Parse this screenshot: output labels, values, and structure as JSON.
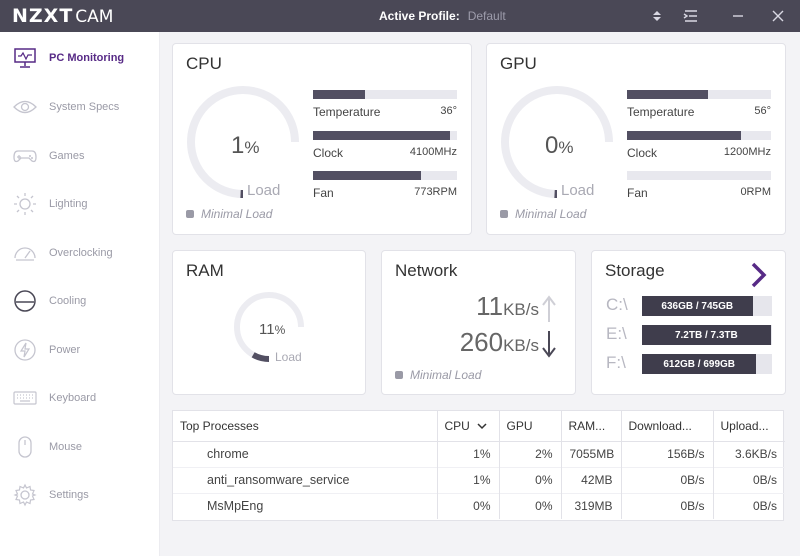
{
  "app": {
    "logo_bold": "NZXT",
    "logo_light": "CAM"
  },
  "header": {
    "profile_label": "Active Profile:",
    "profile_value": "Default"
  },
  "colors": {
    "titlebar": "#4a4856",
    "accent": "#572a86",
    "bar": "#524f62"
  },
  "sidebar": {
    "items": [
      {
        "label": "PC Monitoring",
        "icon": "monitor-icon",
        "active": true
      },
      {
        "label": "System Specs",
        "icon": "eye-icon"
      },
      {
        "label": "Games",
        "icon": "gamepad-icon"
      },
      {
        "label": "Lighting",
        "icon": "sun-icon"
      },
      {
        "label": "Overclocking",
        "icon": "speedometer-icon"
      },
      {
        "label": "Cooling",
        "icon": "fan-icon"
      },
      {
        "label": "Power",
        "icon": "lightning-icon"
      },
      {
        "label": "Keyboard",
        "icon": "keyboard-icon"
      },
      {
        "label": "Mouse",
        "icon": "mouse-icon"
      },
      {
        "label": "Settings",
        "icon": "gear-icon"
      }
    ]
  },
  "cpu": {
    "title": "CPU",
    "load_value": "1",
    "load_unit": "%",
    "load_label": "Load",
    "load_fraction": 0.01,
    "status": "Minimal Load",
    "metrics": [
      {
        "label": "Temperature",
        "value": "36°",
        "fill": 0.36
      },
      {
        "label": "Clock",
        "value": "4100MHz",
        "fill": 0.95
      },
      {
        "label": "Fan",
        "value": "773RPM",
        "fill": 0.75
      }
    ]
  },
  "gpu": {
    "title": "GPU",
    "load_value": "0",
    "load_unit": "%",
    "load_label": "Load",
    "load_fraction": 0.0,
    "status": "Minimal Load",
    "metrics": [
      {
        "label": "Temperature",
        "value": "56°",
        "fill": 0.56
      },
      {
        "label": "Clock",
        "value": "1200MHz",
        "fill": 0.79
      },
      {
        "label": "Fan",
        "value": "0RPM",
        "fill": 0.0
      }
    ]
  },
  "ram": {
    "title": "RAM",
    "load_value": "11",
    "load_unit": "%",
    "load_label": "Load",
    "load_fraction": 0.11
  },
  "network": {
    "title": "Network",
    "up_value": "11",
    "up_unit": "KB/s",
    "down_value": "260",
    "down_unit": "KB/s",
    "status": "Minimal Load"
  },
  "storage": {
    "title": "Storage",
    "drives": [
      {
        "letter": "C:\\",
        "usage": "636GB / 745GB",
        "fill": 0.85
      },
      {
        "letter": "E:\\",
        "usage": "7.2TB / 7.3TB",
        "fill": 0.99
      },
      {
        "letter": "F:\\",
        "usage": "612GB / 699GB",
        "fill": 0.88
      }
    ]
  },
  "processes": {
    "headers": [
      "Top Processes",
      "CPU",
      "GPU",
      "RAM...",
      "Download...",
      "Upload..."
    ],
    "rows": [
      [
        "chrome",
        "1%",
        "2%",
        "7055MB",
        "156B/s",
        "3.6KB/s"
      ],
      [
        "anti_ransomware_service",
        "1%",
        "0%",
        "42MB",
        "0B/s",
        "0B/s"
      ],
      [
        "MsMpEng",
        "0%",
        "0%",
        "319MB",
        "0B/s",
        "0B/s"
      ]
    ]
  }
}
